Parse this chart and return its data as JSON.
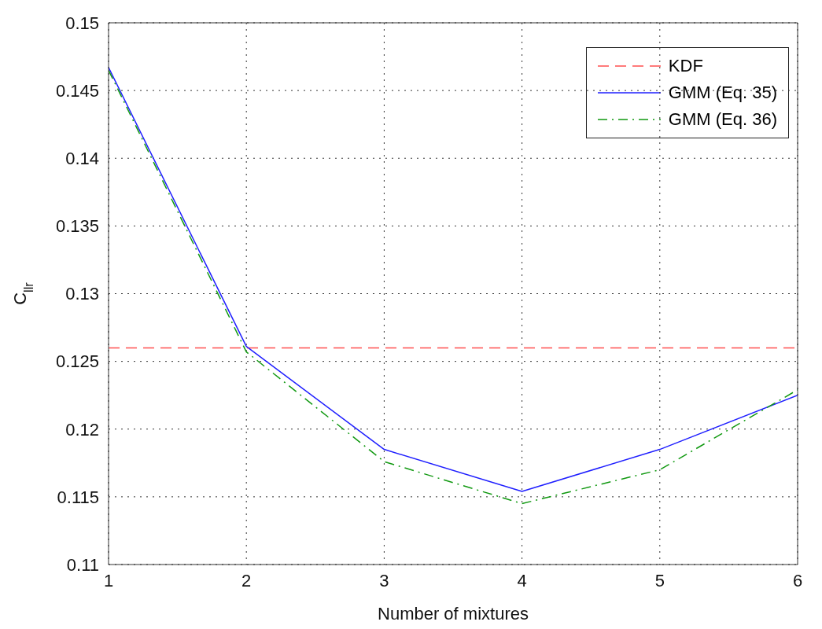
{
  "chart_data": {
    "type": "line",
    "xlabel": "Number of mixtures",
    "ylabel": "C$_{llr}$",
    "x": [
      1,
      2,
      3,
      4,
      5,
      6
    ],
    "series": [
      {
        "name": "KDF",
        "color": "#ff5050",
        "line_style": "dashed",
        "values": [
          0.126,
          0.126,
          0.126,
          0.126,
          0.126,
          0.126
        ]
      },
      {
        "name": "GMM (Eq. 35)",
        "color": "#1f1fff",
        "line_style": "solid",
        "values": [
          0.1467,
          0.1261,
          0.1185,
          0.1154,
          0.1185,
          0.1225
        ]
      },
      {
        "name": "GMM (Eq. 36)",
        "color": "#119911",
        "line_style": "dashdot",
        "values": [
          0.1465,
          0.1257,
          0.1176,
          0.1145,
          0.117,
          0.1229
        ]
      }
    ],
    "xlim": [
      1,
      6
    ],
    "xticks": [
      1,
      2,
      3,
      4,
      5,
      6
    ],
    "ylim": [
      0.11,
      0.15
    ],
    "yticks": [
      0.11,
      0.115,
      0.12,
      0.125,
      0.13,
      0.135,
      0.14,
      0.145,
      0.15
    ],
    "grid": true,
    "legend": "top right",
    "marker": "none"
  }
}
